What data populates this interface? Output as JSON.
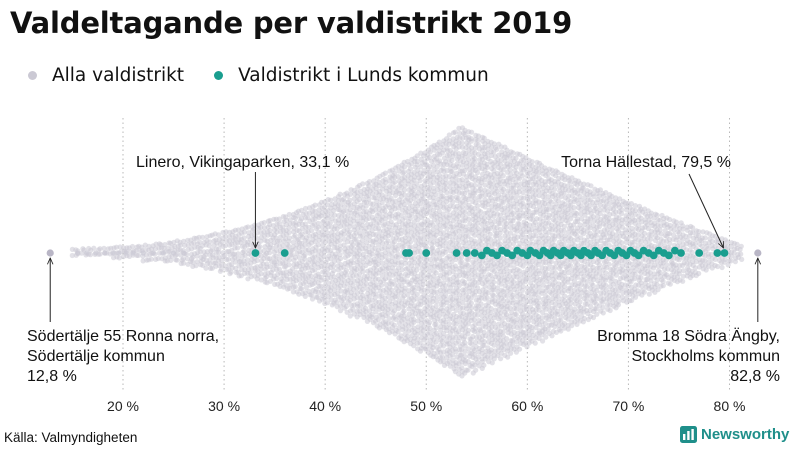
{
  "title": "Valdeltagande per valdistrikt 2019",
  "legend": {
    "all": {
      "label": "Alla valdistrikt",
      "color": "#cbc9d4"
    },
    "lund": {
      "label": "Valdistrikt i Lunds kommun",
      "color": "#1a9e8f"
    }
  },
  "source": "Källa: Valmyndigheten",
  "brand": "Newsworthy",
  "chart_data": {
    "type": "scatter",
    "subtype": "beeswarm",
    "title": "Valdeltagande per valdistrikt 2019",
    "xlabel": "",
    "ylabel": "",
    "xlim": [
      10.8,
      84.5
    ],
    "xticks": [
      20,
      30,
      40,
      50,
      60,
      70,
      80
    ],
    "xtick_labels": [
      "20 %",
      "30 %",
      "40 %",
      "50 %",
      "60 %",
      "70 %",
      "80 %"
    ],
    "grid": "vertical dotted",
    "distribution": {
      "name": "Alla valdistrikt",
      "min": 12.8,
      "max": 82.8,
      "mode": 53.5,
      "description": "approx. 6000 valdistrikt, density peaked near 53 %"
    },
    "series": [
      {
        "name": "Valdistrikt i Lunds kommun",
        "values": [
          33.1,
          36.0,
          48.0,
          48.3,
          50.0,
          53.0,
          54.0,
          54.8,
          55.5,
          56.0,
          56.5,
          57.0,
          57.5,
          58.0,
          58.5,
          59.0,
          59.5,
          60.0,
          60.3,
          60.8,
          61.2,
          61.6,
          62.0,
          62.3,
          62.6,
          63.0,
          63.3,
          63.6,
          64.0,
          64.3,
          64.6,
          65.0,
          65.3,
          65.6,
          66.0,
          66.3,
          66.7,
          67.0,
          67.4,
          67.8,
          68.2,
          68.6,
          69.0,
          69.4,
          69.8,
          70.2,
          70.6,
          71.0,
          71.5,
          72.0,
          72.5,
          73.0,
          73.5,
          74.0,
          74.6,
          75.2,
          77.0,
          78.8,
          79.5
        ]
      }
    ],
    "extremes": [
      {
        "name": "Alla valdistrikt",
        "label": "Södertälje 55 Ronna norra,\nSödertälje kommun\n12,8 %",
        "value": 12.8
      },
      {
        "name": "Alla valdistrikt",
        "label": "Bromma 18 Södra Ängby,\nStockholms kommun\n82,8 %",
        "value": 82.8
      }
    ],
    "annotations": [
      {
        "label": "Linero, Vikingaparken, 33,1 %",
        "value": 33.1
      },
      {
        "label": "Torna Hällestad, 79,5 %",
        "value": 79.5
      },
      {
        "label_lines": [
          "Södertälje 55 Ronna norra,",
          "Södertälje kommun",
          "12,8 %"
        ],
        "value": 12.8
      },
      {
        "label_lines": [
          "Bromma 18 Södra Ängby,",
          "Stockholms kommun",
          "82,8 %"
        ],
        "value": 82.8
      }
    ]
  }
}
